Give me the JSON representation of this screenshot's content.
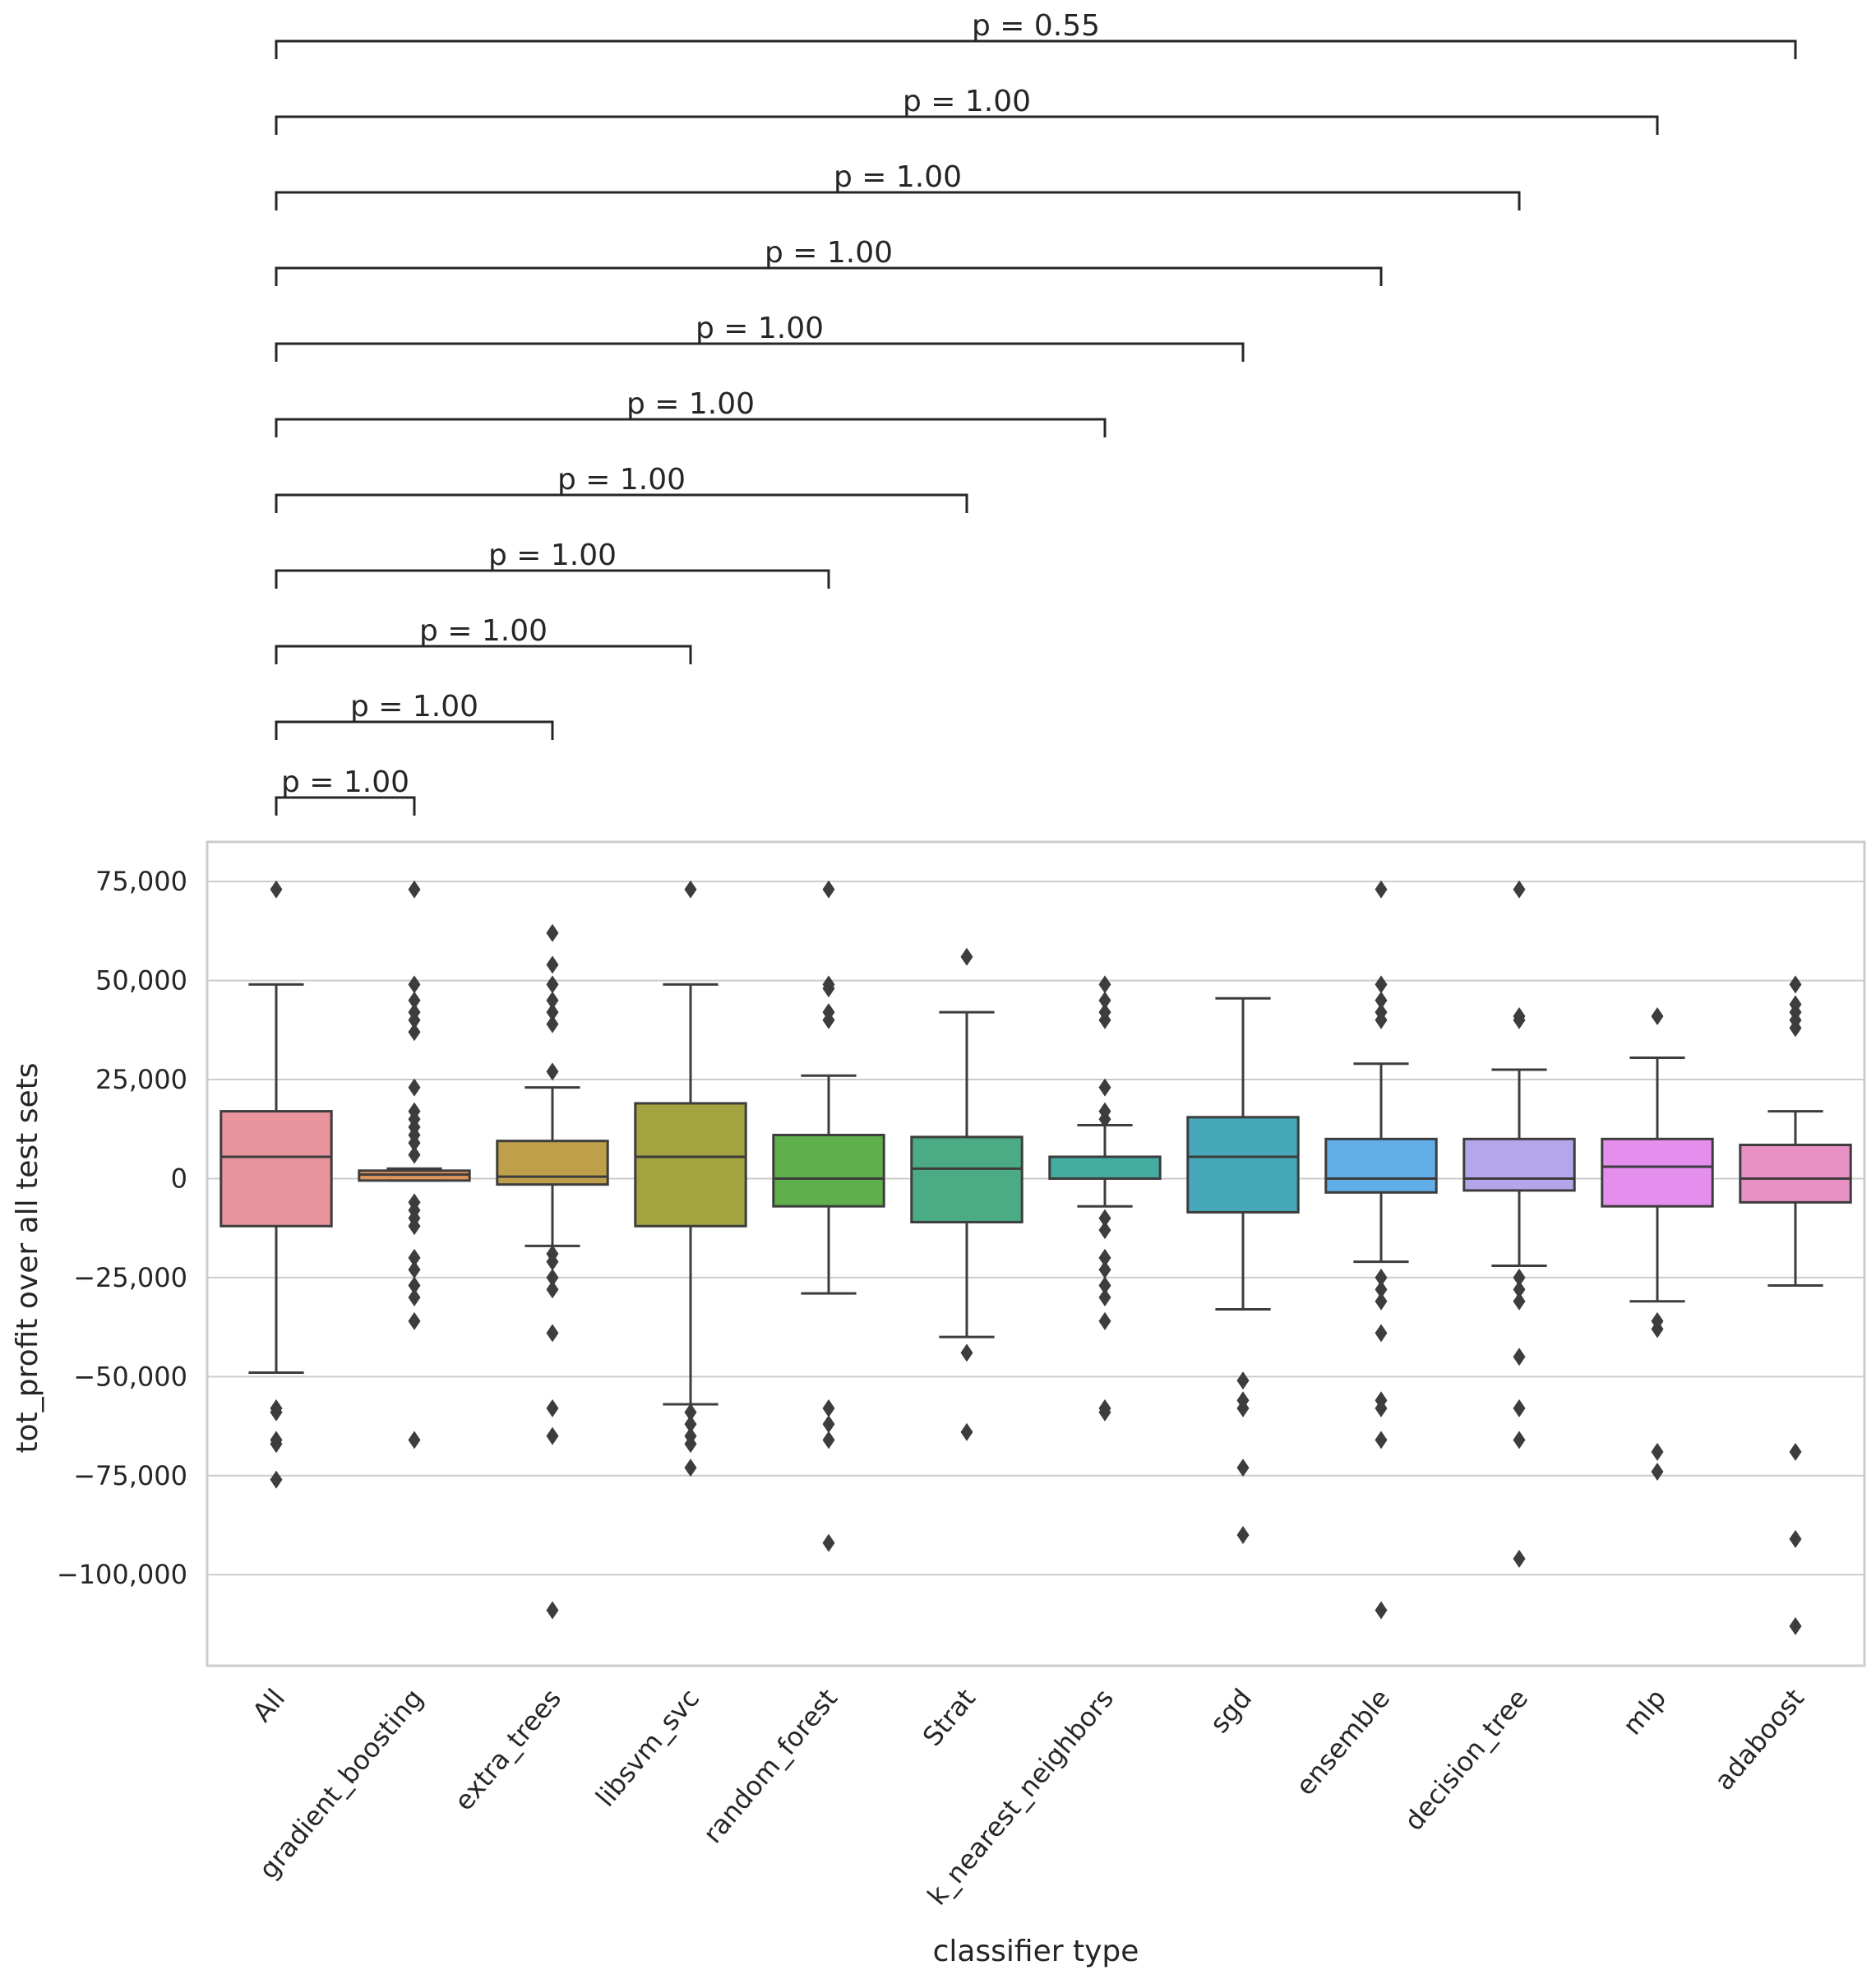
{
  "chart_data": {
    "type": "box",
    "xlabel": "classifier type",
    "ylabel": "tot_profit over all test sets",
    "ylim": [
      -123000,
      85000
    ],
    "yticks": [
      75000,
      50000,
      25000,
      0,
      -25000,
      -50000,
      -75000,
      -100000
    ],
    "ytick_labels": [
      "75,000",
      "50,000",
      "25,000",
      "0",
      "−25,000",
      "−50,000",
      "−75,000",
      "−100,000"
    ],
    "grid": true,
    "categories": [
      "All",
      "gradient_boosting",
      "extra_trees",
      "libsvm_svc",
      "random_forest",
      "Strat",
      "k_nearest_neighbors",
      "sgd",
      "ensemble",
      "decision_tree",
      "mlp",
      "adaboost"
    ],
    "colors": [
      "#e8949d",
      "#e0935b",
      "#bfa04a",
      "#a3a33f",
      "#5fb04d",
      "#4bab84",
      "#44aca0",
      "#46a8b8",
      "#62aee8",
      "#b5a6ec",
      "#e48eee",
      "#e990c4"
    ],
    "boxes": [
      {
        "q1": -12000,
        "median": 5500,
        "q3": 17000,
        "whisker_low": -49000,
        "whisker_high": 49000,
        "outliers": [
          73000,
          -58000,
          -59000,
          -66000,
          -67000,
          -76000
        ]
      },
      {
        "q1": -500,
        "median": 1000,
        "q3": 2000,
        "whisker_low": -500,
        "whisker_high": 2500,
        "outliers": [
          73000,
          49000,
          45000,
          42000,
          40000,
          37000,
          23000,
          17000,
          15000,
          13000,
          11000,
          9000,
          6000,
          -6000,
          -8000,
          -10000,
          -12000,
          -20000,
          -23000,
          -27000,
          -30000,
          -36000,
          -66000
        ]
      },
      {
        "q1": -1500,
        "median": 500,
        "q3": 9500,
        "whisker_low": -17000,
        "whisker_high": 23000,
        "outliers": [
          62000,
          54000,
          49000,
          45000,
          42000,
          39000,
          27000,
          -19000,
          -21000,
          -25000,
          -28000,
          -39000,
          -58000,
          -65000,
          -109000
        ]
      },
      {
        "q1": -12000,
        "median": 5500,
        "q3": 19000,
        "whisker_low": -57000,
        "whisker_high": 49000,
        "outliers": [
          73000,
          -59000,
          -62000,
          -65000,
          -67000,
          -73000
        ]
      },
      {
        "q1": -7000,
        "median": 0,
        "q3": 11000,
        "whisker_low": -29000,
        "whisker_high": 26000,
        "outliers": [
          73000,
          49000,
          48000,
          42000,
          40000,
          -58000,
          -62000,
          -66000,
          -92000
        ]
      },
      {
        "q1": -11000,
        "median": 2500,
        "q3": 10500,
        "whisker_low": -40000,
        "whisker_high": 42000,
        "outliers": [
          56000,
          -44000,
          -64000
        ]
      },
      {
        "q1": 0,
        "median": 0,
        "q3": 5500,
        "whisker_low": -7000,
        "whisker_high": 13500,
        "outliers": [
          49000,
          45000,
          42000,
          40000,
          23000,
          17000,
          15000,
          -10000,
          -13000,
          -20000,
          -23000,
          -27000,
          -30000,
          -36000,
          -58000,
          -59000
        ]
      },
      {
        "q1": -8500,
        "median": 5500,
        "q3": 15500,
        "whisker_low": -33000,
        "whisker_high": 45500,
        "outliers": [
          -51000,
          -56000,
          -58000,
          -73000,
          -90000
        ]
      },
      {
        "q1": -3500,
        "median": 0,
        "q3": 10000,
        "whisker_low": -21000,
        "whisker_high": 29000,
        "outliers": [
          73000,
          49000,
          45000,
          42000,
          40000,
          -25000,
          -28000,
          -31000,
          -39000,
          -56000,
          -58000,
          -66000,
          -109000
        ]
      },
      {
        "q1": -3000,
        "median": 0,
        "q3": 10000,
        "whisker_low": -22000,
        "whisker_high": 27500,
        "outliers": [
          73000,
          41000,
          40000,
          -25000,
          -28000,
          -31000,
          -45000,
          -58000,
          -66000,
          -96000
        ]
      },
      {
        "q1": -7000,
        "median": 3000,
        "q3": 10000,
        "whisker_low": -31000,
        "whisker_high": 30500,
        "outliers": [
          41000,
          -36000,
          -38000,
          -69000,
          -74000
        ]
      },
      {
        "q1": -6000,
        "median": 0,
        "q3": 8500,
        "whisker_low": -27000,
        "whisker_high": 17000,
        "outliers": [
          49000,
          44000,
          42000,
          40000,
          38000,
          -69000,
          -91000,
          -113000
        ]
      }
    ],
    "comparisons": [
      {
        "from": "All",
        "to": "gradient_boosting",
        "label": "p = 1.00"
      },
      {
        "from": "All",
        "to": "extra_trees",
        "label": "p = 1.00"
      },
      {
        "from": "All",
        "to": "libsvm_svc",
        "label": "p = 1.00"
      },
      {
        "from": "All",
        "to": "random_forest",
        "label": "p = 1.00"
      },
      {
        "from": "All",
        "to": "Strat",
        "label": "p = 1.00"
      },
      {
        "from": "All",
        "to": "k_nearest_neighbors",
        "label": "p = 1.00"
      },
      {
        "from": "All",
        "to": "sgd",
        "label": "p = 1.00"
      },
      {
        "from": "All",
        "to": "ensemble",
        "label": "p = 1.00"
      },
      {
        "from": "All",
        "to": "decision_tree",
        "label": "p = 1.00"
      },
      {
        "from": "All",
        "to": "mlp",
        "label": "p = 1.00"
      },
      {
        "from": "All",
        "to": "adaboost",
        "label": "p = 0.55"
      }
    ]
  }
}
